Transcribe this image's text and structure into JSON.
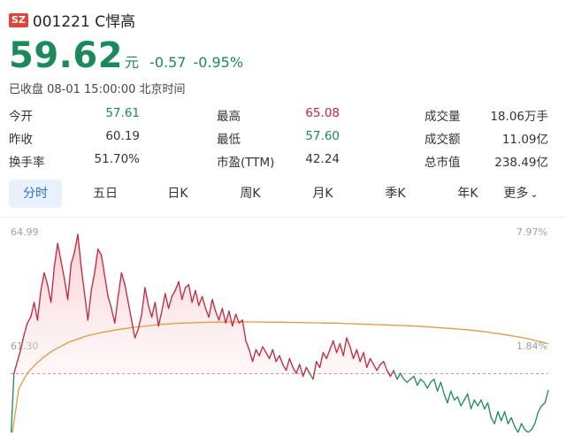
{
  "header": {
    "exchange_badge": "SZ",
    "stock_name": "001221 C悍高"
  },
  "quote": {
    "price": "59.62",
    "unit": "元",
    "change": "-0.57",
    "change_pct": "-0.95%",
    "status": "已收盘 08-01 15:00:00 北京时间",
    "up_color": "#c8233a",
    "down_color": "#1a8a5a"
  },
  "stats": [
    [
      {
        "label": "今开",
        "value": "57.61",
        "tone": "down"
      },
      {
        "label": "最高",
        "value": "65.08",
        "tone": "up"
      },
      {
        "label": "成交量",
        "value": "18.06万手",
        "tone": "neutral"
      }
    ],
    [
      {
        "label": "昨收",
        "value": "60.19",
        "tone": "neutral"
      },
      {
        "label": "最低",
        "value": "57.60",
        "tone": "down"
      },
      {
        "label": "成交额",
        "value": "11.09亿",
        "tone": "neutral"
      }
    ],
    [
      {
        "label": "换手率",
        "value": "51.70%",
        "tone": "neutral"
      },
      {
        "label": "市盈(TTM)",
        "value": "42.24",
        "tone": "neutral"
      },
      {
        "label": "总市值",
        "value": "238.49亿",
        "tone": "neutral"
      }
    ]
  ],
  "tabs": [
    {
      "label": "分时",
      "active": true
    },
    {
      "label": "五日",
      "active": false
    },
    {
      "label": "日K",
      "active": false
    },
    {
      "label": "周K",
      "active": false
    },
    {
      "label": "月K",
      "active": false
    },
    {
      "label": "季K",
      "active": false
    },
    {
      "label": "年K",
      "active": false
    },
    {
      "label": "更多",
      "active": false,
      "icon": "chevron-down-icon"
    }
  ],
  "chart_data": {
    "type": "line",
    "y_labels_left": [
      "64.99",
      "61.30"
    ],
    "y_labels_right": [
      "7.97%",
      "1.84%"
    ],
    "ylim": [
      58.2,
      65.2
    ],
    "prev_close": 60.19,
    "series": [
      {
        "values": [
          57.8,
          60.2,
          60.6,
          61.0,
          61.5,
          61.9,
          62.1,
          62.6,
          62.0,
          63.0,
          63.6,
          63.2,
          62.6,
          63.8,
          64.6,
          64.0,
          63.4,
          62.7,
          63.9,
          64.3,
          64.9,
          63.8,
          62.9,
          62.0,
          63.0,
          63.6,
          64.4,
          64.2,
          63.5,
          62.8,
          62.4,
          61.9,
          62.8,
          63.6,
          63.2,
          62.6,
          62.0,
          61.4,
          61.7,
          62.2,
          63.1,
          62.5,
          62.1,
          62.6,
          61.8,
          62.3,
          62.9,
          62.4,
          62.8,
          63.0,
          63.3,
          62.7,
          63.1,
          63.2,
          62.6,
          63.0,
          62.5,
          62.8,
          62.4,
          62.1,
          62.7,
          62.3,
          62.0,
          62.4,
          61.9,
          62.3,
          61.8,
          62.2,
          61.9,
          62.0,
          61.3,
          61.0,
          60.6,
          61.0,
          60.8,
          61.1,
          60.9,
          60.7,
          61.0,
          60.6,
          60.8,
          60.5,
          60.3,
          60.7,
          60.4,
          60.2,
          60.5,
          60.1,
          60.4,
          60.2,
          60.0,
          60.6,
          60.4,
          60.9,
          60.7,
          61.0,
          61.3,
          60.9,
          61.2,
          60.8,
          61.4,
          61.1,
          60.7,
          61.0,
          60.6,
          60.9,
          60.4,
          60.7,
          60.5,
          60.3,
          60.5,
          60.6,
          60.3,
          60.1,
          60.3,
          60.0,
          60.2,
          60.0,
          59.9,
          60.0,
          60.1,
          59.8,
          60.0,
          59.9,
          59.7,
          59.9,
          60.0,
          59.6,
          59.9,
          59.5,
          59.2,
          59.6,
          59.3,
          59.4,
          59.1,
          59.3,
          59.5,
          59.0,
          59.3,
          59.1,
          59.3,
          59.0,
          59.2,
          58.7,
          58.5,
          58.9,
          58.6,
          58.9,
          58.5,
          58.7,
          58.4,
          58.2,
          58.5,
          58.3,
          58.2,
          58.3,
          58.5,
          58.9,
          59.1,
          59.2,
          59.62
        ],
        "avg_values": [
          57.8,
          59.7,
          60.2,
          60.5,
          60.75,
          60.95,
          61.1,
          61.25,
          61.35,
          61.45,
          61.52,
          61.58,
          61.63,
          61.68,
          61.72,
          61.76,
          61.79,
          61.82,
          61.85,
          61.87,
          61.89,
          61.9,
          61.91,
          61.92,
          61.93,
          61.93,
          61.94,
          61.94,
          61.94,
          61.94,
          61.94,
          61.93,
          61.93,
          61.93,
          61.92,
          61.92,
          61.91,
          61.91,
          61.9,
          61.9,
          61.89,
          61.88,
          61.87,
          61.86,
          61.85,
          61.84,
          61.83,
          61.82,
          61.81,
          61.8,
          61.78,
          61.76,
          61.74,
          61.72,
          61.7,
          61.68,
          61.65,
          61.62,
          61.58,
          61.54,
          61.5,
          61.45,
          61.4,
          61.34,
          61.27,
          61.2
        ],
        "color": "#c8233a",
        "down_color": "#1a8a5a",
        "avg_color": "#e39a3a"
      }
    ]
  }
}
